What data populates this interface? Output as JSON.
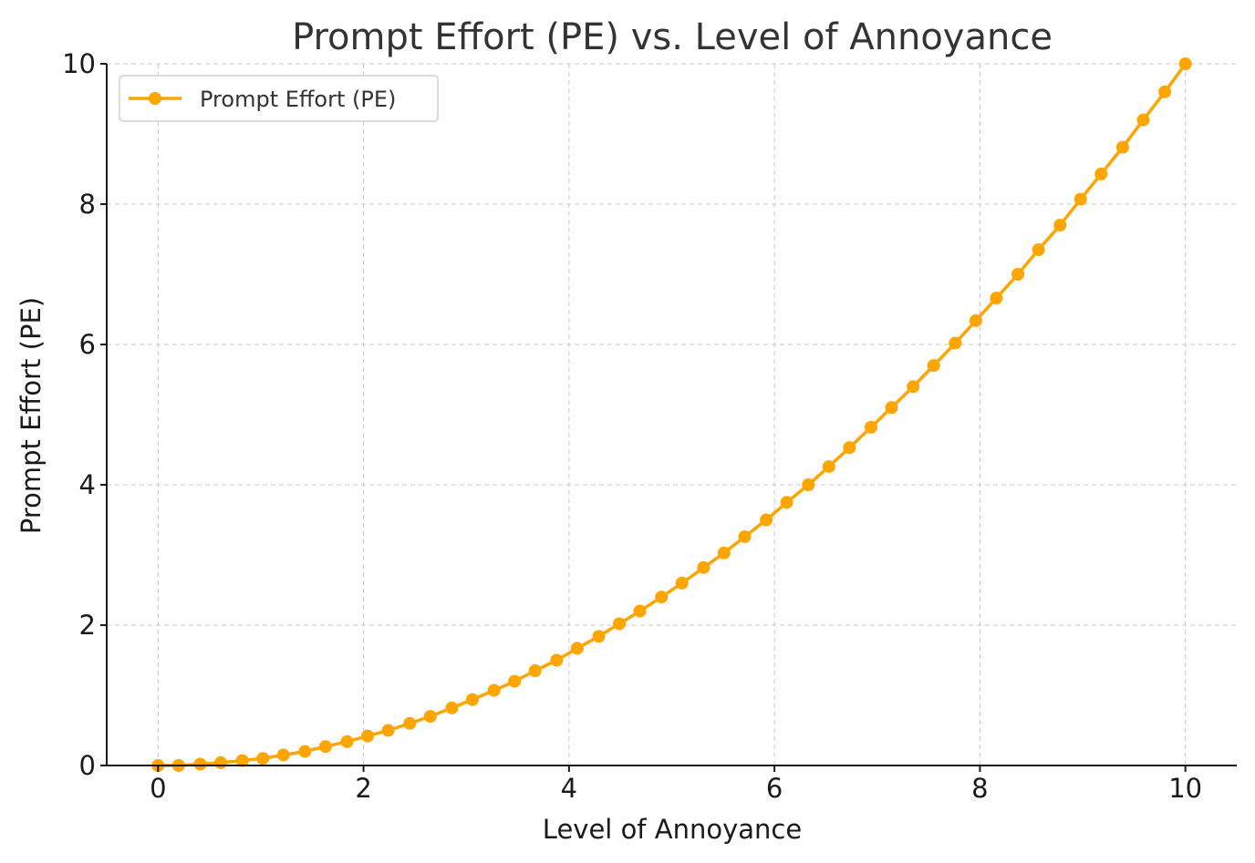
{
  "chart_data": {
    "type": "line",
    "title": "Prompt Effort (PE) vs. Level of Annoyance",
    "xlabel": "Level of Annoyance",
    "ylabel": "Prompt Effort (PE)",
    "xlim": [
      -0.5,
      10.5
    ],
    "ylim": [
      0,
      10
    ],
    "xticks": [
      0,
      2,
      4,
      6,
      8,
      10
    ],
    "yticks": [
      0,
      2,
      4,
      6,
      8,
      10
    ],
    "xtick_labels": [
      "0",
      "2",
      "4",
      "6",
      "8",
      "10"
    ],
    "ytick_labels": [
      "0",
      "2",
      "4",
      "6",
      "8",
      "10"
    ],
    "grid": true,
    "legend_position": "top-left",
    "series": [
      {
        "name": "Prompt Effort (PE)",
        "color": "#FFA500",
        "marker": "circle",
        "x": [
          0,
          0.2,
          0.41,
          0.61,
          0.82,
          1.02,
          1.22,
          1.43,
          1.63,
          1.84,
          2.04,
          2.24,
          2.45,
          2.65,
          2.86,
          3.06,
          3.27,
          3.47,
          3.67,
          3.88,
          4.08,
          4.29,
          4.49,
          4.69,
          4.9,
          5.1,
          5.31,
          5.51,
          5.71,
          5.92,
          6.12,
          6.33,
          6.53,
          6.73,
          6.94,
          7.14,
          7.35,
          7.55,
          7.76,
          7.96,
          8.16,
          8.37,
          8.57,
          8.78,
          8.98,
          9.18,
          9.39,
          9.59,
          9.8,
          10
        ],
        "y": [
          0,
          0,
          0.02,
          0.04,
          0.07,
          0.1,
          0.15,
          0.2,
          0.27,
          0.34,
          0.42,
          0.5,
          0.6,
          0.7,
          0.82,
          0.94,
          1.07,
          1.2,
          1.35,
          1.5,
          1.67,
          1.84,
          2.02,
          2.2,
          2.4,
          2.6,
          2.82,
          3.03,
          3.26,
          3.5,
          3.75,
          4,
          4.26,
          4.53,
          4.82,
          5.1,
          5.4,
          5.7,
          6.02,
          6.34,
          6.66,
          7,
          7.35,
          7.7,
          8.07,
          8.43,
          8.81,
          9.2,
          9.6,
          10
        ]
      }
    ]
  }
}
